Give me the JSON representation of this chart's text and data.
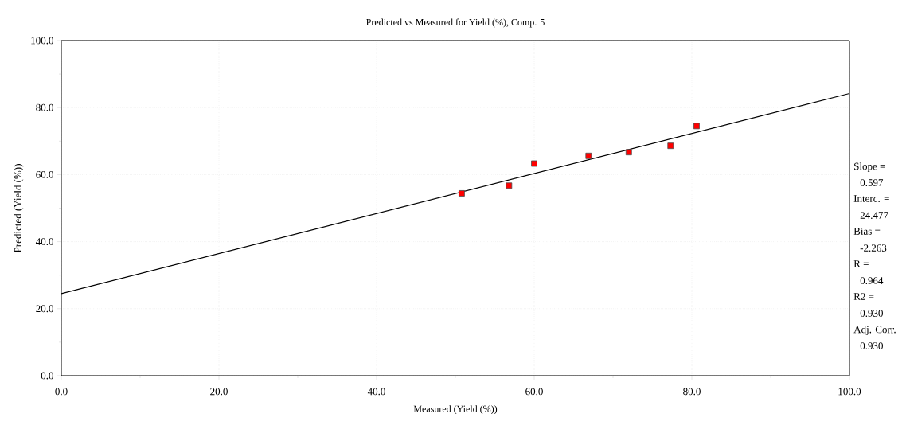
{
  "chart_data": {
    "type": "scatter",
    "title": "Predicted vs Measured for Yield (%), Comp. 5",
    "xlabel": "Measured (Yield (%))",
    "ylabel": "Predicted (Yield (%))",
    "xlim": [
      0,
      100
    ],
    "ylim": [
      0,
      100
    ],
    "xticks": [
      {
        "value": 0,
        "label": "0.0"
      },
      {
        "value": 10,
        "label": null
      },
      {
        "value": 20,
        "label": "20.0"
      },
      {
        "value": 30,
        "label": null
      },
      {
        "value": 40,
        "label": "40.0"
      },
      {
        "value": 50,
        "label": null
      },
      {
        "value": 60,
        "label": "60.0"
      },
      {
        "value": 70,
        "label": null
      },
      {
        "value": 80,
        "label": "80.0"
      },
      {
        "value": 90,
        "label": null
      },
      {
        "value": 100,
        "label": "100.0"
      }
    ],
    "yticks": [
      {
        "value": 0,
        "label": "0.0"
      },
      {
        "value": 10,
        "label": null
      },
      {
        "value": 20,
        "label": "20.0"
      },
      {
        "value": 30,
        "label": null
      },
      {
        "value": 40,
        "label": "40.0"
      },
      {
        "value": 50,
        "label": null
      },
      {
        "value": 60,
        "label": "60.0"
      },
      {
        "value": 70,
        "label": null
      },
      {
        "value": 80,
        "label": "80.0"
      },
      {
        "value": 90,
        "label": null
      },
      {
        "value": 100,
        "label": "100.0"
      }
    ],
    "grid": true,
    "series": [
      {
        "color": "#ff0000",
        "marker": "square",
        "x": [
          50.8,
          56.8,
          60.0,
          66.9,
          72.0,
          77.3,
          80.6
        ],
        "values": [
          54.4,
          56.7,
          63.3,
          65.6,
          66.7,
          68.6,
          74.5
        ]
      },
      {
        "type": "line",
        "color": "#000000",
        "marker": "none",
        "line_style": "solid",
        "x": [
          0,
          100
        ],
        "values": [
          24.5,
          84.2
        ]
      }
    ],
    "annotations": [
      "Slope =",
      "0.597",
      "Interc. =",
      "24.477",
      "Bias =",
      "-2.263",
      "R =",
      "0.964",
      "R2 =",
      "0.930",
      "Adj. Corr.",
      "0.930"
    ]
  }
}
